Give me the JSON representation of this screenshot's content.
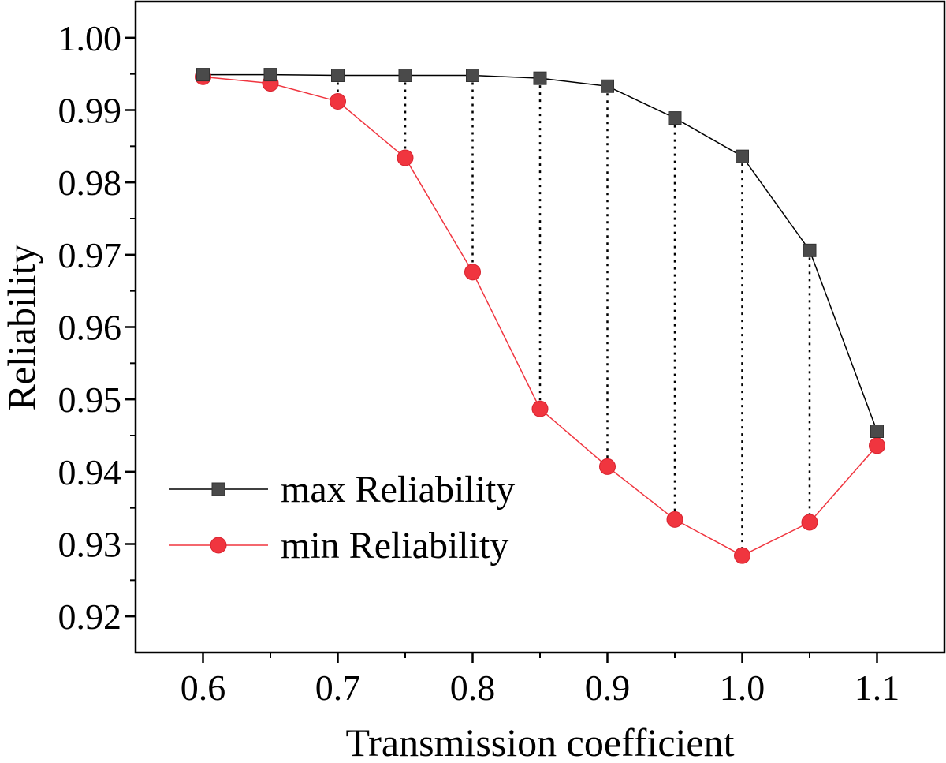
{
  "chart_data": {
    "type": "line",
    "title": "",
    "xlabel": "Transmission coefficient",
    "ylabel": "Reliability",
    "x": [
      0.6,
      0.65,
      0.7,
      0.75,
      0.8,
      0.85,
      0.9,
      0.95,
      1.0,
      1.05,
      1.1
    ],
    "xlim": [
      0.55,
      1.15
    ],
    "ylim": [
      0.915,
      1.005
    ],
    "xticks": [
      "0.6",
      "0.7",
      "0.8",
      "0.9",
      "1.0",
      "1.1"
    ],
    "yticks": [
      "0.92",
      "0.93",
      "0.94",
      "0.95",
      "0.96",
      "0.97",
      "0.98",
      "0.99",
      "1.00"
    ],
    "legend_position": "bottom-left",
    "series": [
      {
        "name": "max Reliability",
        "color": "#4a4a4a",
        "line_color": "#000000",
        "marker": "square",
        "values": [
          0.9949,
          0.9949,
          0.9948,
          0.9948,
          0.9948,
          0.9944,
          0.9933,
          0.9889,
          0.9836,
          0.9706,
          0.9456
        ]
      },
      {
        "name": "min Reliability",
        "color": "#f0353f",
        "line_color": "#f0353f",
        "marker": "circle",
        "values": [
          0.9946,
          0.9937,
          0.9912,
          0.9834,
          0.9676,
          0.9487,
          0.9407,
          0.9334,
          0.9284,
          0.933,
          0.9436
        ]
      }
    ],
    "range_connectors": "dotted vertical lines between max and min at each x"
  }
}
